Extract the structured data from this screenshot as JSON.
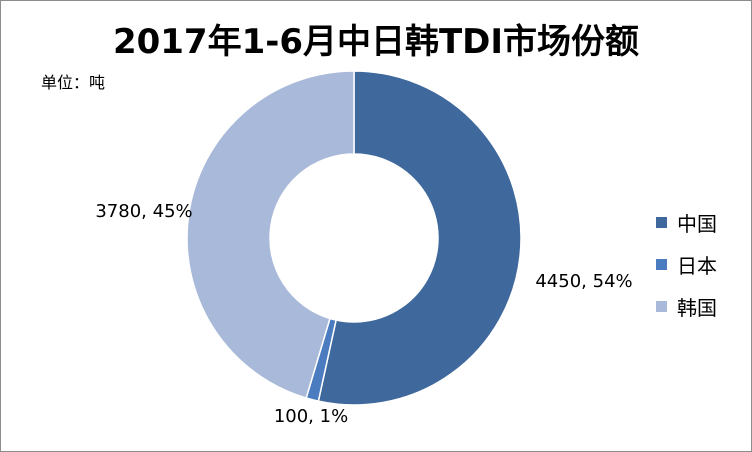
{
  "chart_data": {
    "type": "pie",
    "title": "2017年1-6月中日韩TDI市场份额",
    "unit_label": "单位：吨",
    "categories": [
      "中国",
      "日本",
      "韩国"
    ],
    "values": [
      4450,
      100,
      3780
    ],
    "percent_labels": [
      "54%",
      "1%",
      "45%"
    ],
    "data_labels": [
      "4450, 54%",
      "100, 1%",
      "3780, 45%"
    ],
    "colors": [
      "#3f689d",
      "#4a7cbf",
      "#a9b9d9"
    ],
    "donut": true,
    "legend_position": "right"
  }
}
